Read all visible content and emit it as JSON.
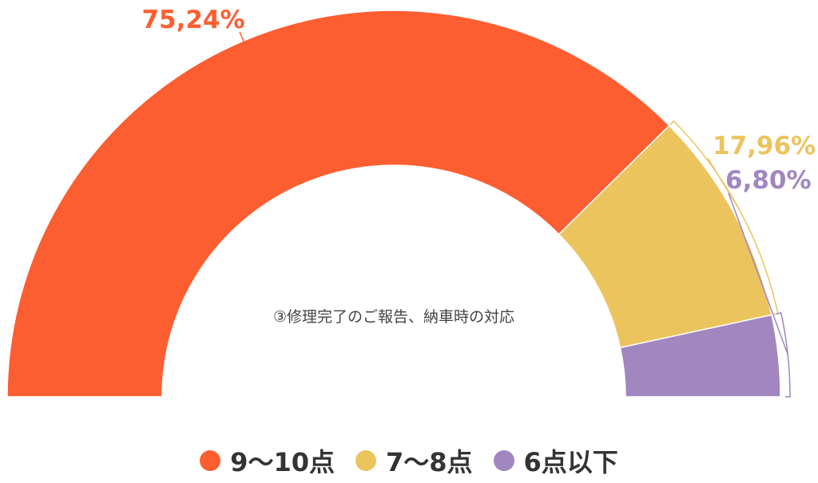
{
  "chart_data": {
    "type": "pie",
    "subtitle": "③修理完了のご報告、納車時の対応",
    "slices": [
      {
        "name": "9〜10点",
        "value": 75.24,
        "label": "75,24%",
        "color": "#fc5e31"
      },
      {
        "name": "7〜8点",
        "value": 17.96,
        "label": "17,96%",
        "color": "#ecc45e"
      },
      {
        "name": "6点以下",
        "value": 6.8,
        "label": "6,80%",
        "color": "#a186c0"
      }
    ],
    "legend_position": "bottom"
  }
}
